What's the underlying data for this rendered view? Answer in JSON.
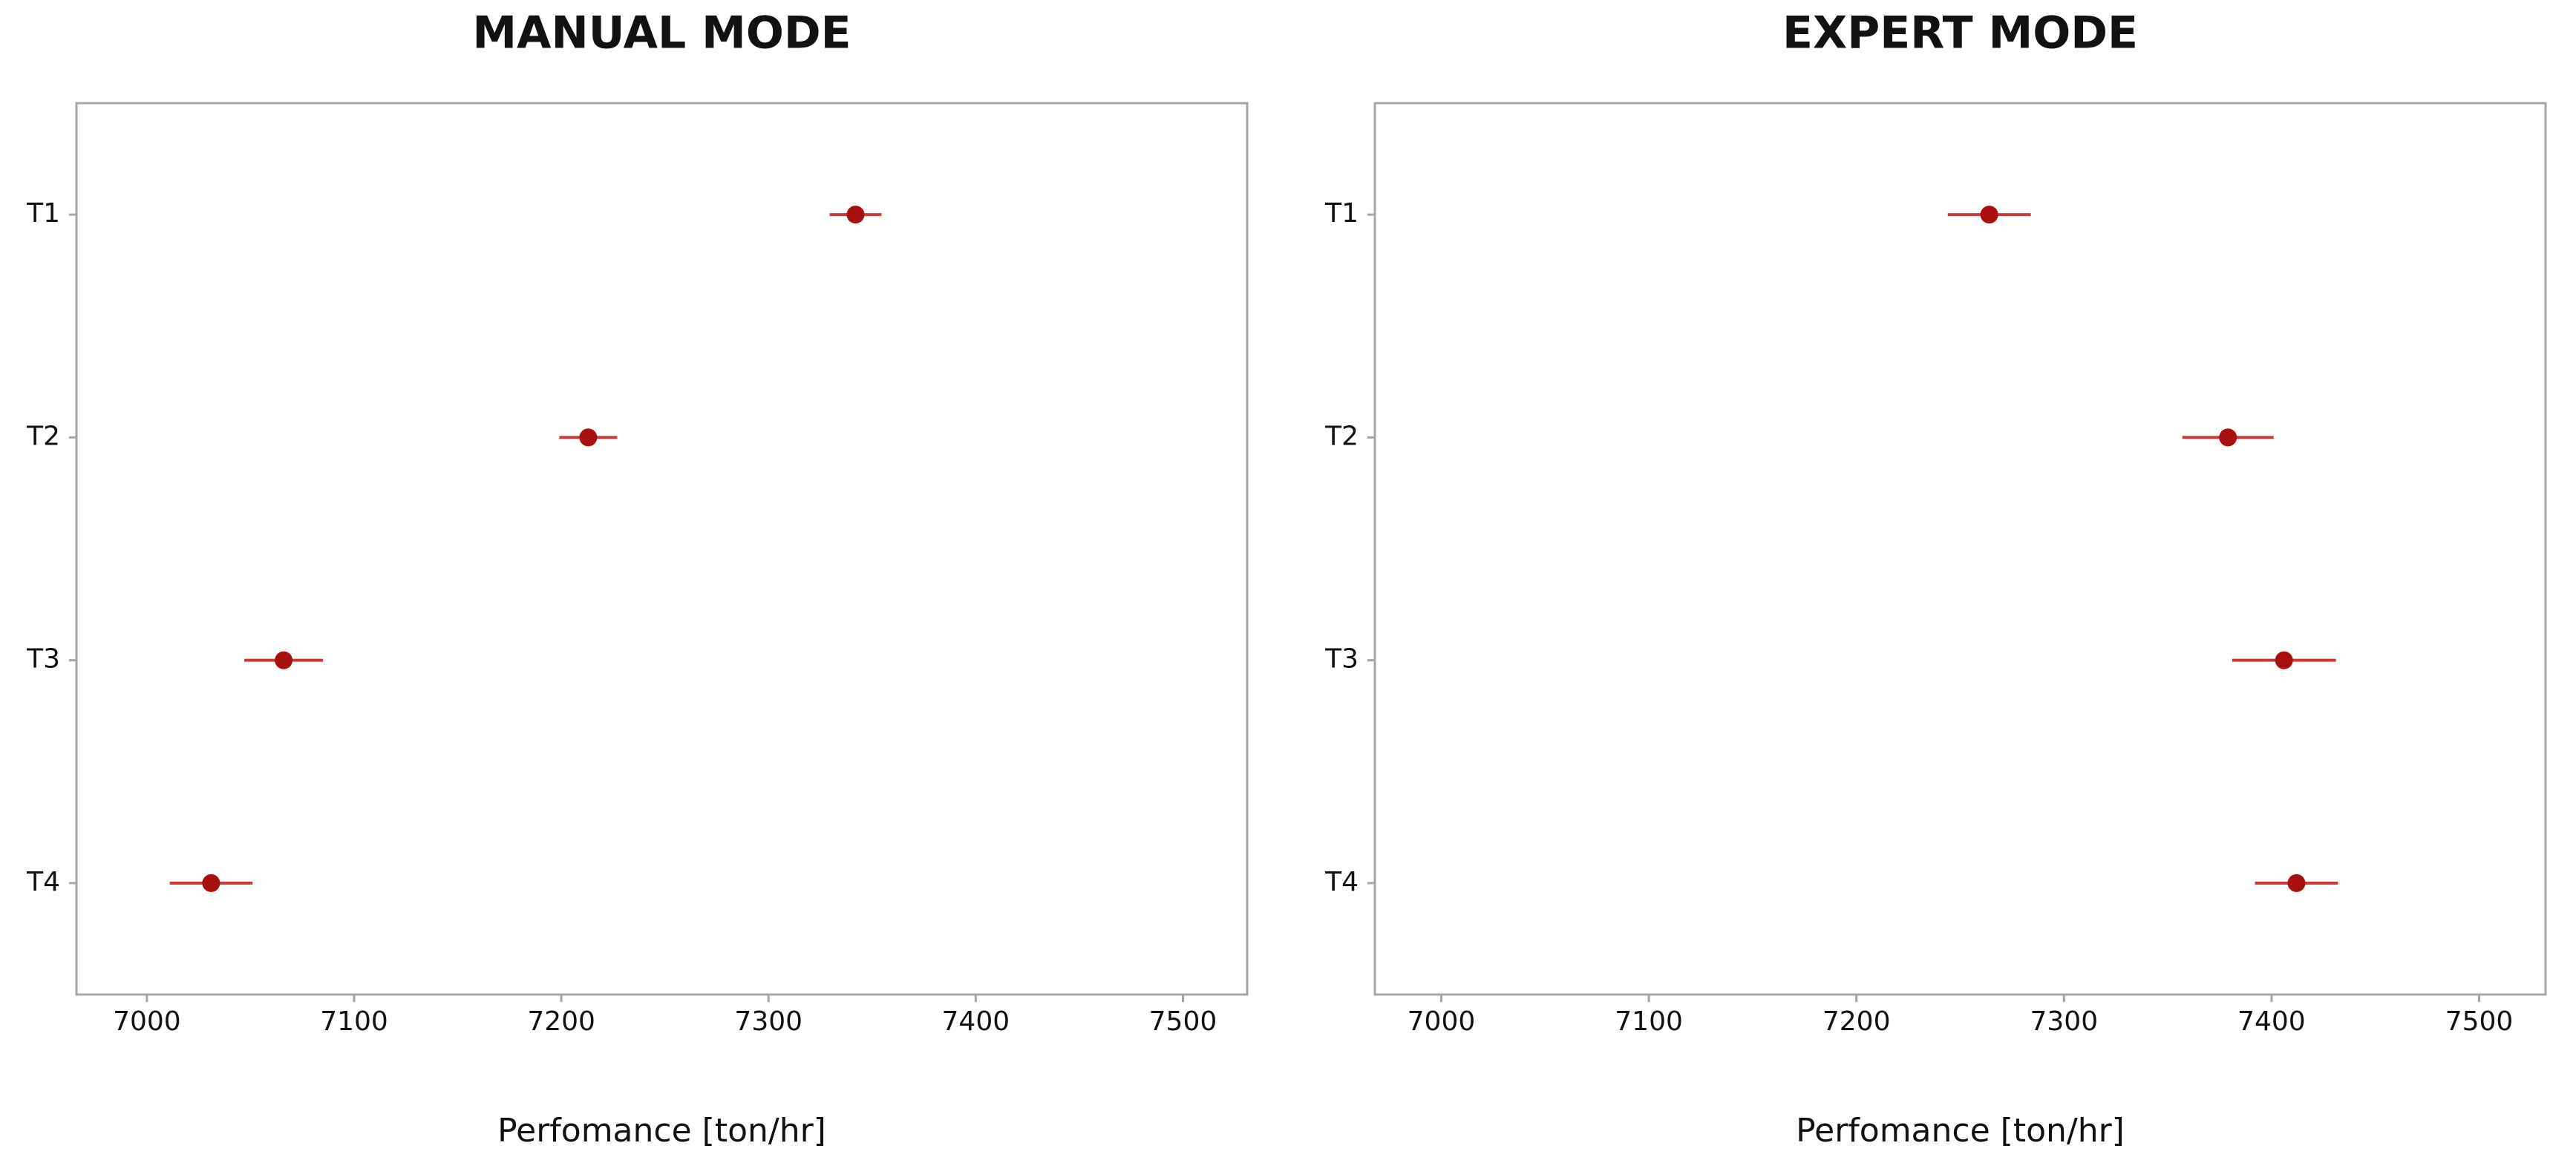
{
  "chart_data": [
    {
      "type": "errorbar",
      "title": "MANUAL MODE",
      "xlabel": "Perfomance [ton/hr]",
      "categories": [
        "T1",
        "T2",
        "T3",
        "T4"
      ],
      "values": [
        7342,
        7213,
        7066,
        7031
      ],
      "errors": [
        12.5,
        14,
        19,
        20
      ],
      "color": "#a80f0f",
      "xlim": [
        6966,
        7531
      ],
      "xticks": [
        7000,
        7100,
        7200,
        7300,
        7400,
        7500
      ]
    },
    {
      "type": "errorbar",
      "title": "EXPERT MODE",
      "xlabel": "Perfomance [ton/hr]",
      "categories": [
        "T1",
        "T2",
        "T3",
        "T4"
      ],
      "values": [
        7264,
        7379,
        7406,
        7412
      ],
      "errors": [
        20,
        22,
        25,
        20
      ],
      "color": "#a80f0f",
      "xlim": [
        6968,
        7532
      ],
      "xticks": [
        7000,
        7100,
        7200,
        7300,
        7400,
        7500
      ]
    }
  ]
}
